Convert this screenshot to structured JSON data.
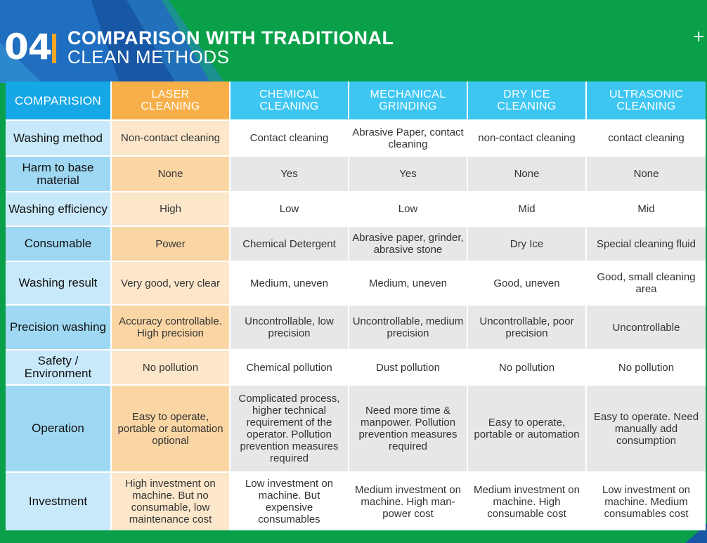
{
  "header": {
    "number": "04",
    "title_line1": "COMPARISON WITH TRADITIONAL",
    "title_line2": "CLEAN METHODS"
  },
  "colors": {
    "header_blue": "#16a7e6",
    "column_blue": "#3ec6f2",
    "laser_orange": "#f7b049",
    "laser_light": "#fde7cb",
    "background_green": "#0aa04a",
    "background_blue": "#1856a6"
  },
  "table": {
    "columns": [
      "COMPARISION",
      "LASER CLEANING",
      "CHEMICAL CLEANING",
      "MECHANICAL GRINDING",
      "DRY ICE CLEANING",
      "ULTRASONIC CLEANING"
    ],
    "rows": [
      {
        "label": "Washing method",
        "cells": [
          "Non-contact cleaning",
          "Contact cleaning",
          "Abrasive Paper, contact cleaning",
          "non-contact cleaning",
          "contact cleaning"
        ]
      },
      {
        "label": "Harm to base material",
        "cells": [
          "None",
          "Yes",
          "Yes",
          "None",
          "None"
        ]
      },
      {
        "label": "Washing efficiency",
        "cells": [
          "High",
          "Low",
          "Low",
          "Mid",
          "Mid"
        ]
      },
      {
        "label": "Consumable",
        "cells": [
          "Power",
          "Chemical Detergent",
          "Abrasive paper, grinder, abrasive stone",
          "Dry Ice",
          "Special cleaning fluid"
        ]
      },
      {
        "label": "Washing result",
        "cells": [
          "Very good, very clear",
          "Medium, uneven",
          "Medium, uneven",
          "Good, uneven",
          "Good, small cleaning area"
        ]
      },
      {
        "label": "Precision washing",
        "cells": [
          "Accuracy controllable. High precision",
          "Uncontrollable, low precision",
          "Uncontrollable, medium precision",
          "Uncontrollable, poor precision",
          "Uncontrollable"
        ]
      },
      {
        "label": "Safety / Environment",
        "cells": [
          "No pollution",
          "Chemical pollution",
          "Dust pollution",
          "No pollution",
          "No pollution"
        ]
      },
      {
        "label": "Operation",
        "cells": [
          "Easy to operate, portable or automation optional",
          "Complicated process, higher technical requirement of the operator. Pollution prevention measures required",
          "Need more time & manpower. Pollution prevention measures required",
          "Easy to operate, portable or automation",
          "Easy to operate. Need manually add consumption"
        ]
      },
      {
        "label": "Investment",
        "cells": [
          "High investment on machine. But no consumable, low maintenance cost",
          "Low investment on machine. But expensive consumables",
          "Medium investment on machine. High man-power cost",
          "Medium investment on machine. High consumable cost",
          "Low investment on machine. Medium consumables cost"
        ]
      }
    ]
  }
}
